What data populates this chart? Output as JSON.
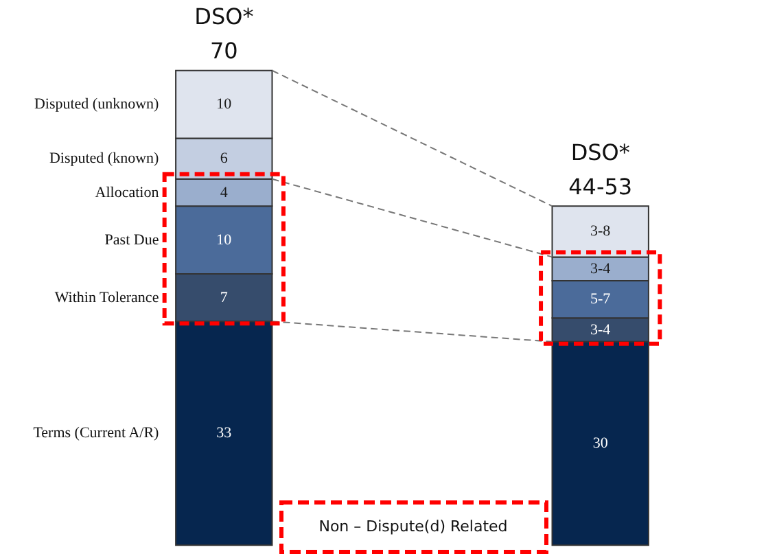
{
  "chart_data": {
    "type": "bar",
    "stacked": true,
    "categories": [
      "DSO*\n70",
      "DSO*\n44-53"
    ],
    "series": [
      {
        "name": "Terms (Current A/R)",
        "color": "#06264f",
        "values": [
          33,
          30
        ],
        "value_labels": [
          "33",
          "30"
        ]
      },
      {
        "name": "Within Tolerance",
        "color": "#364c6c",
        "values": [
          7,
          3.5
        ],
        "value_labels": [
          "7",
          "3-4"
        ]
      },
      {
        "name": "Past Due",
        "color": "#4b6b9a",
        "values": [
          10,
          5.5
        ],
        "value_labels": [
          "10",
          "5-7"
        ]
      },
      {
        "name": "Allocation",
        "color": "#9aaecd",
        "values": [
          4,
          3.5
        ],
        "value_labels": [
          "4",
          "3-4"
        ]
      },
      {
        "name": "Disputed (known)",
        "color": "#c3cee1",
        "values": [
          6,
          null
        ],
        "value_labels": [
          "6",
          null
        ]
      },
      {
        "name": "Disputed (unknown)",
        "color": "#dfe4ee",
        "values": [
          10,
          7.5
        ],
        "value_labels": [
          "10",
          "3-8"
        ]
      }
    ],
    "annotations": [
      "Non – Dispute(d) Related"
    ]
  }
}
